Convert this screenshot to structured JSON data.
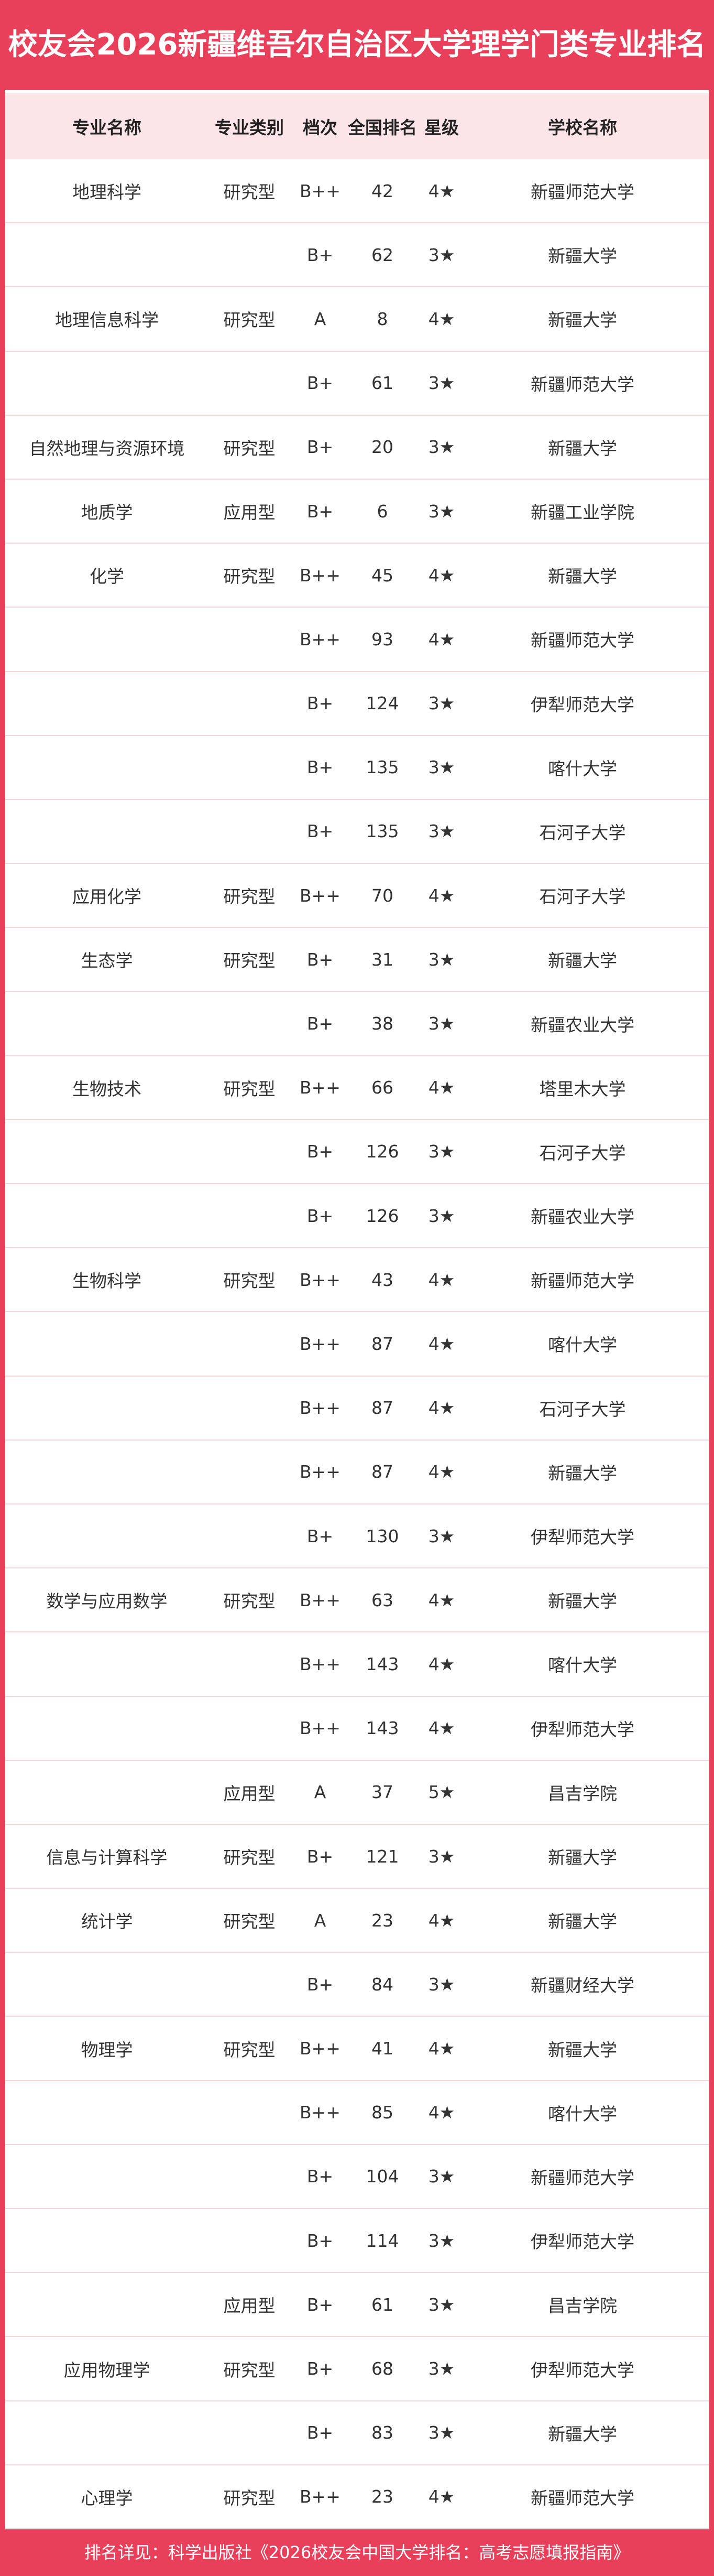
{
  "header": {
    "title": "校友会2026新疆维吾尔自治区大学理学门类专业排名"
  },
  "table": {
    "columns": [
      "专业名称",
      "专业类别",
      "档次",
      "全国排名",
      "星级",
      "学校名称"
    ],
    "rows": [
      [
        "地理科学",
        "研究型",
        "B++",
        42,
        "4★",
        "新疆师范大学"
      ],
      [
        null,
        null,
        "B+",
        62,
        "3★",
        "新疆大学"
      ],
      [
        "地理信息科学",
        "研究型",
        "A",
        8,
        "4★",
        "新疆大学"
      ],
      [
        null,
        null,
        "B+",
        61,
        "3★",
        "新疆师范大学"
      ],
      [
        "自然地理与资源环境",
        "研究型",
        "B+",
        20,
        "3★",
        "新疆大学"
      ],
      [
        "地质学",
        "应用型",
        "B+",
        6,
        "3★",
        "新疆工业学院"
      ],
      [
        "化学",
        "研究型",
        "B++",
        45,
        "4★",
        "新疆大学"
      ],
      [
        null,
        null,
        "B++",
        93,
        "4★",
        "新疆师范大学"
      ],
      [
        null,
        null,
        "B+",
        124,
        "3★",
        "伊犁师范大学"
      ],
      [
        null,
        null,
        "B+",
        135,
        "3★",
        "喀什大学"
      ],
      [
        null,
        null,
        "B+",
        135,
        "3★",
        "石河子大学"
      ],
      [
        "应用化学",
        "研究型",
        "B++",
        70,
        "4★",
        "石河子大学"
      ],
      [
        "生态学",
        "研究型",
        "B+",
        31,
        "3★",
        "新疆大学"
      ],
      [
        null,
        null,
        "B+",
        38,
        "3★",
        "新疆农业大学"
      ],
      [
        "生物技术",
        "研究型",
        "B++",
        66,
        "4★",
        "塔里木大学"
      ],
      [
        null,
        null,
        "B+",
        126,
        "3★",
        "石河子大学"
      ],
      [
        null,
        null,
        "B+",
        126,
        "3★",
        "新疆农业大学"
      ],
      [
        "生物科学",
        "研究型",
        "B++",
        43,
        "4★",
        "新疆师范大学"
      ],
      [
        null,
        null,
        "B++",
        87,
        "4★",
        "喀什大学"
      ],
      [
        null,
        null,
        "B++",
        87,
        "4★",
        "石河子大学"
      ],
      [
        null,
        null,
        "B++",
        87,
        "4★",
        "新疆大学"
      ],
      [
        null,
        null,
        "B+",
        130,
        "3★",
        "伊犁师范大学"
      ],
      [
        "数学与应用数学",
        "研究型",
        "B++",
        63,
        "4★",
        "新疆大学"
      ],
      [
        null,
        null,
        "B++",
        143,
        "4★",
        "喀什大学"
      ],
      [
        null,
        null,
        "B++",
        143,
        "4★",
        "伊犁师范大学"
      ],
      [
        null,
        "应用型",
        "A",
        37,
        "5★",
        "昌吉学院"
      ],
      [
        "信息与计算科学",
        "研究型",
        "B+",
        121,
        "3★",
        "新疆大学"
      ],
      [
        "统计学",
        "研究型",
        "A",
        23,
        "4★",
        "新疆大学"
      ],
      [
        null,
        null,
        "B+",
        84,
        "3★",
        "新疆财经大学"
      ],
      [
        "物理学",
        "研究型",
        "B++",
        41,
        "4★",
        "新疆大学"
      ],
      [
        null,
        null,
        "B++",
        85,
        "4★",
        "喀什大学"
      ],
      [
        null,
        null,
        "B+",
        104,
        "3★",
        "新疆师范大学"
      ],
      [
        null,
        null,
        "B+",
        114,
        "3★",
        "伊犁师范大学"
      ],
      [
        null,
        "应用型",
        "B+",
        61,
        "3★",
        "昌吉学院"
      ],
      [
        "应用物理学",
        "研究型",
        "B+",
        68,
        "3★",
        "伊犁师范大学"
      ],
      [
        null,
        null,
        "B+",
        83,
        "3★",
        "新疆大学"
      ],
      [
        "心理学",
        "研究型",
        "B++",
        23,
        "4★",
        "新疆师范大学"
      ]
    ]
  },
  "footer": {
    "note": "排名详见：科学出版社《2026校友会中国大学排名：高考志愿填报指南》"
  }
}
